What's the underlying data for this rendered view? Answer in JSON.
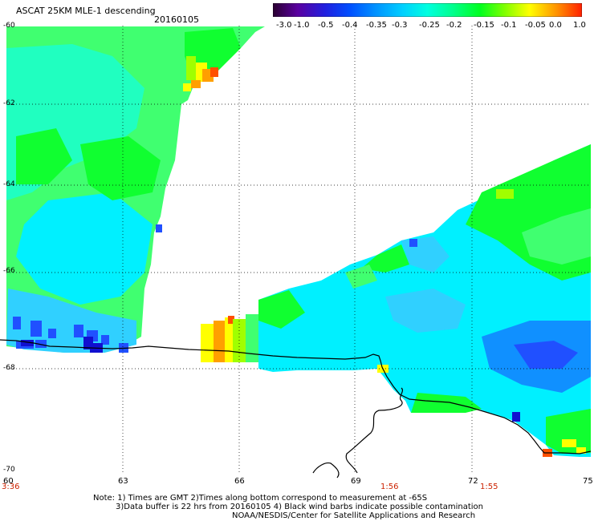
{
  "header": {
    "title": "ASCAT 25KM MLE-1 descending",
    "date": "20160105"
  },
  "colorbar": {
    "tick_labels": [
      "-3.0",
      "-1.0",
      "-0.5",
      "-0.4",
      "-0.35",
      "-0.3",
      "-0.25",
      "-0.2",
      "-0.15",
      "-0.1",
      "-0.05",
      "0.0",
      "1.0"
    ],
    "colors": [
      "#2a0030",
      "#5a00a0",
      "#2020e0",
      "#0050ff",
      "#0090ff",
      "#00d0ff",
      "#00ffe0",
      "#00ff90",
      "#00ff20",
      "#80ff00",
      "#ffff00",
      "#ff9000",
      "#ff2000"
    ]
  },
  "axes": {
    "lat_labels": [
      "-60",
      "-62",
      "-64",
      "-66",
      "-68",
      "-70"
    ],
    "lon_labels": [
      "60",
      "63",
      "66",
      "69",
      "72",
      "75"
    ],
    "time_labels": [
      "3:36",
      "1:56",
      "1:55"
    ]
  },
  "notes": {
    "line1": "Note: 1) Times are GMT 2)Times along bottom correspond to measurement at -65S",
    "line2": "3)Data buffer is 22 hrs from 20160105 4) Black wind barbs indicate possible contamination",
    "line3": "NOAA/NESDIS/Center for Satellite Applications and Research"
  },
  "map": {
    "region": "Antarctic coast 60E-75E, 60S-70S",
    "palette": {
      "green": "#10ff30",
      "light_green": "#40ff70",
      "aqua": "#20ffc0",
      "cyan": "#00f0ff",
      "sky": "#30d0ff",
      "blue": "#1090ff",
      "deep_blue": "#2050ff",
      "navy": "#1010d0",
      "yellow": "#ffff00",
      "orange": "#ffa000",
      "red_orange": "#ff5000",
      "lime": "#a0ff00",
      "coast": "#000000"
    }
  }
}
